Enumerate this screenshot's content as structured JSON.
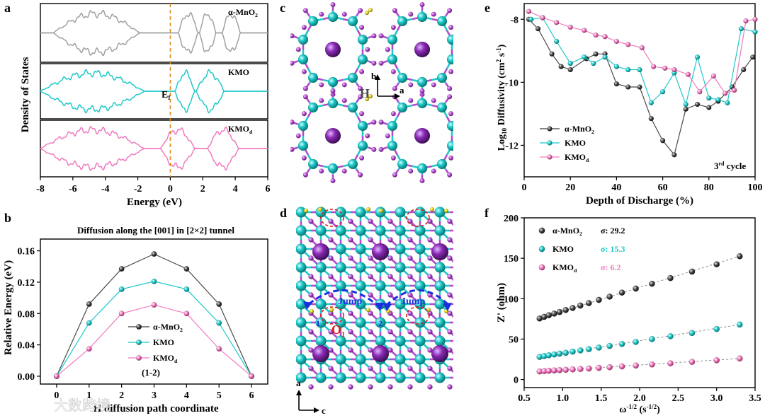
{
  "figure": {
    "panel_labels": {
      "a": "a",
      "b": "b",
      "c": "c",
      "d": "d",
      "e": "e",
      "f": "f"
    },
    "watermark": "大数跨境"
  },
  "colors": {
    "alpha_mno2": "#a0a0a0",
    "alpha_mno2_dark": "#3a3a3a",
    "kmo": "#1ec8c8",
    "kmod": "#f07ac0",
    "fermi": "#e08a1e",
    "mn_atom": "#1ec8c8",
    "o_atom": "#b44ad0",
    "k_atom": "#8a2ab4",
    "h_atom": "#e8d81e"
  },
  "chart_data": [
    {
      "id": "a",
      "type": "line",
      "title": "",
      "xlabel": "Energy (eV)",
      "ylabel": "Density of States",
      "xlim": [
        -8,
        6
      ],
      "xticks": [
        "-8",
        "-6",
        "-4",
        "-2",
        "0",
        "2",
        "4",
        "6"
      ],
      "fermi_label": "Ef",
      "fermi_label_main": "E",
      "fermi_label_sub": "f",
      "subpanels": [
        {
          "name": "α-MnO2",
          "label_main": "α-MnO",
          "label_sub": "2",
          "color": "#a0a0a0",
          "bands": [
            [
              -7.2,
              -1.9
            ],
            [
              0.5,
              1.7
            ],
            [
              1.8,
              2.8
            ],
            [
              3.2,
              4.3
            ]
          ]
        },
        {
          "name": "KMO",
          "label_main": "KMO",
          "label_sub": "",
          "color": "#1ec8c8",
          "bands": [
            [
              -8.0,
              -1.6
            ],
            [
              0.3,
              1.5
            ],
            [
              1.6,
              3.3
            ]
          ]
        },
        {
          "name": "KMOd",
          "label_main": "KMO",
          "label_sub": "d",
          "color": "#f07ac0",
          "bands": [
            [
              -8.0,
              -1.6
            ],
            [
              -0.6,
              1.5
            ],
            [
              2.3,
              4.2
            ]
          ]
        }
      ]
    },
    {
      "id": "b",
      "type": "line",
      "title": "Diffusion along the [001] in [2×2] tunnel",
      "xlabel": "H diffusion path coordinate",
      "ylabel": "Relative Energy (eV)",
      "xlim": [
        -0.5,
        6.5
      ],
      "ylim": [
        -0.01,
        0.175
      ],
      "xticks": [
        0,
        1,
        2,
        3,
        4,
        5,
        6
      ],
      "yticks": [
        "0.00",
        "0.04",
        "0.08",
        "0.12",
        "0.16"
      ],
      "annotation": "(1-2)",
      "x": [
        0,
        1,
        2,
        3,
        4,
        5,
        6
      ],
      "series": [
        {
          "name": "α-MnO2",
          "label_main": "α-MnO",
          "label_sub": "2",
          "color": "#3a3a3a",
          "values": [
            0.0,
            0.092,
            0.137,
            0.156,
            0.137,
            0.092,
            0.0
          ]
        },
        {
          "name": "KMO",
          "label_main": "KMO",
          "label_sub": "",
          "color": "#1ec8c8",
          "values": [
            0.0,
            0.068,
            0.111,
            0.121,
            0.111,
            0.068,
            0.0
          ]
        },
        {
          "name": "KMOd",
          "label_main": "KMO",
          "label_sub": "d",
          "color": "#f07ac0",
          "values": [
            0.0,
            0.035,
            0.08,
            0.091,
            0.08,
            0.035,
            0.0
          ]
        }
      ]
    },
    {
      "id": "e",
      "type": "line",
      "title": "",
      "xlabel": "Depth of Discharge (%)",
      "ylabel_main": "Log",
      "ylabel_sub": "10",
      "ylabel_rest": " Diffusivity (cm",
      "ylabel_sup1": "2",
      "ylabel_mid": " s",
      "ylabel_sup2": "-1",
      "ylabel_end": ")",
      "xlim": [
        0,
        100
      ],
      "ylim": [
        -13,
        -7.5
      ],
      "xticks": [
        0,
        20,
        40,
        60,
        80,
        100
      ],
      "yticks": [
        -8,
        -10,
        -12
      ],
      "annotation_main": "3",
      "annotation_sup": "rd",
      "annotation_rest": " cycle",
      "series": [
        {
          "name": "α-MnO2",
          "label_main": "α-MnO",
          "label_sub": "2",
          "color": "#3a3a3a",
          "x": [
            2,
            6,
            12,
            16,
            20,
            27,
            31,
            35,
            40,
            45,
            50,
            55,
            60,
            65,
            70,
            75,
            80,
            84,
            90,
            95,
            99
          ],
          "y": [
            -8.0,
            -8.3,
            -9.1,
            -9.5,
            -9.6,
            -9.25,
            -9.1,
            -9.1,
            -10.05,
            -10.15,
            -10.15,
            -11.15,
            -11.85,
            -12.3,
            -10.85,
            -10.7,
            -10.8,
            -10.6,
            -10.15,
            -9.6,
            -9.2
          ]
        },
        {
          "name": "KMO",
          "label_main": "KMO",
          "label_sub": "",
          "color": "#1ec8c8",
          "x": [
            3,
            8,
            14,
            20,
            26,
            30,
            35,
            40,
            45,
            50,
            55,
            60,
            65,
            70,
            75,
            80,
            84,
            88,
            94,
            100
          ],
          "y": [
            -8.0,
            -7.95,
            -8.7,
            -9.4,
            -9.2,
            -9.4,
            -9.2,
            -9.5,
            -9.6,
            -9.6,
            -10.65,
            -10.3,
            -9.7,
            -10.7,
            -9.2,
            -10.5,
            -10.55,
            -10.65,
            -8.3,
            -8.4
          ]
        },
        {
          "name": "KMOd",
          "label_main": "KMO",
          "label_sub": "d",
          "color": "#f07ac0",
          "x": [
            2,
            8,
            14,
            20,
            26,
            31,
            35,
            40,
            45,
            51,
            56,
            61,
            65,
            71,
            76,
            82,
            87,
            91,
            96,
            100
          ],
          "y": [
            -7.75,
            -7.95,
            -8.1,
            -8.25,
            -8.35,
            -8.5,
            -8.55,
            -8.7,
            -8.8,
            -8.9,
            -9.5,
            -9.55,
            -9.6,
            -9.75,
            -10.3,
            -9.8,
            -10.35,
            -10.25,
            -8.05,
            -8.0
          ]
        }
      ]
    },
    {
      "id": "f",
      "type": "scatter",
      "title": "",
      "xlabel_main": "ω",
      "xlabel_sup": "-1/2",
      "xlabel_rest": " (s",
      "xlabel_sup2": "-1/2",
      "xlabel_end": ")",
      "ylabel": "Z' (ohm)",
      "xlim": [
        0.5,
        3.5
      ],
      "ylim": [
        -10,
        200
      ],
      "xticks": [
        "0.5",
        "1.0",
        "1.5",
        "2.0",
        "2.5",
        "3.0",
        "3.5"
      ],
      "yticks": [
        0,
        50,
        100,
        150,
        200
      ],
      "series": [
        {
          "name": "α-MnO2",
          "label_main": "α-MnO",
          "label_sub": "2",
          "sigma": "σ: 29.2",
          "color": "#3a3a3a",
          "x": [
            0.7,
            0.76,
            0.82,
            0.89,
            0.96,
            1.04,
            1.13,
            1.23,
            1.34,
            1.47,
            1.61,
            1.77,
            1.95,
            2.16,
            2.4,
            2.68,
            3.0,
            3.3
          ],
          "y": [
            75.5,
            77.5,
            79.5,
            81.5,
            83.5,
            86,
            88.5,
            91.5,
            94.5,
            98.5,
            102.5,
            107.5,
            112.5,
            118.5,
            125.5,
            133.5,
            142.5,
            152.5
          ]
        },
        {
          "name": "KMO",
          "label_main": "KMO",
          "label_sub": "",
          "sigma": "σ: 15.3",
          "color": "#1ec8c8",
          "x": [
            0.7,
            0.76,
            0.82,
            0.89,
            0.96,
            1.04,
            1.13,
            1.23,
            1.34,
            1.47,
            1.61,
            1.77,
            1.95,
            2.16,
            2.4,
            2.68,
            3.0,
            3.3
          ],
          "y": [
            28,
            29,
            30,
            31,
            32,
            33,
            34.5,
            36,
            37.5,
            39.5,
            41.5,
            44,
            46.5,
            50,
            53.5,
            57.5,
            62.5,
            68
          ]
        },
        {
          "name": "KMOd",
          "label_main": "KMO",
          "label_sub": "d",
          "sigma": "σ: 6.2",
          "color": "#f07ac0",
          "x": [
            0.7,
            0.76,
            0.82,
            0.89,
            0.96,
            1.04,
            1.13,
            1.23,
            1.34,
            1.47,
            1.61,
            1.77,
            1.95,
            2.16,
            2.4,
            2.68,
            3.0,
            3.3
          ],
          "y": [
            10,
            10.4,
            10.8,
            11.2,
            11.6,
            12,
            12.5,
            13,
            13.6,
            14.4,
            15.2,
            16.2,
            17.3,
            18.6,
            20,
            21.8,
            23.8,
            26
          ]
        }
      ]
    }
  ],
  "structures": {
    "c": {
      "axis_b": "b",
      "axis_a": "a",
      "atom_label": "H"
    },
    "d": {
      "axis_a": "a",
      "axis_c": "c",
      "jump_label": "Jump",
      "o_label": "O",
      "o_sub": "1",
      "ring_label": "2"
    }
  }
}
